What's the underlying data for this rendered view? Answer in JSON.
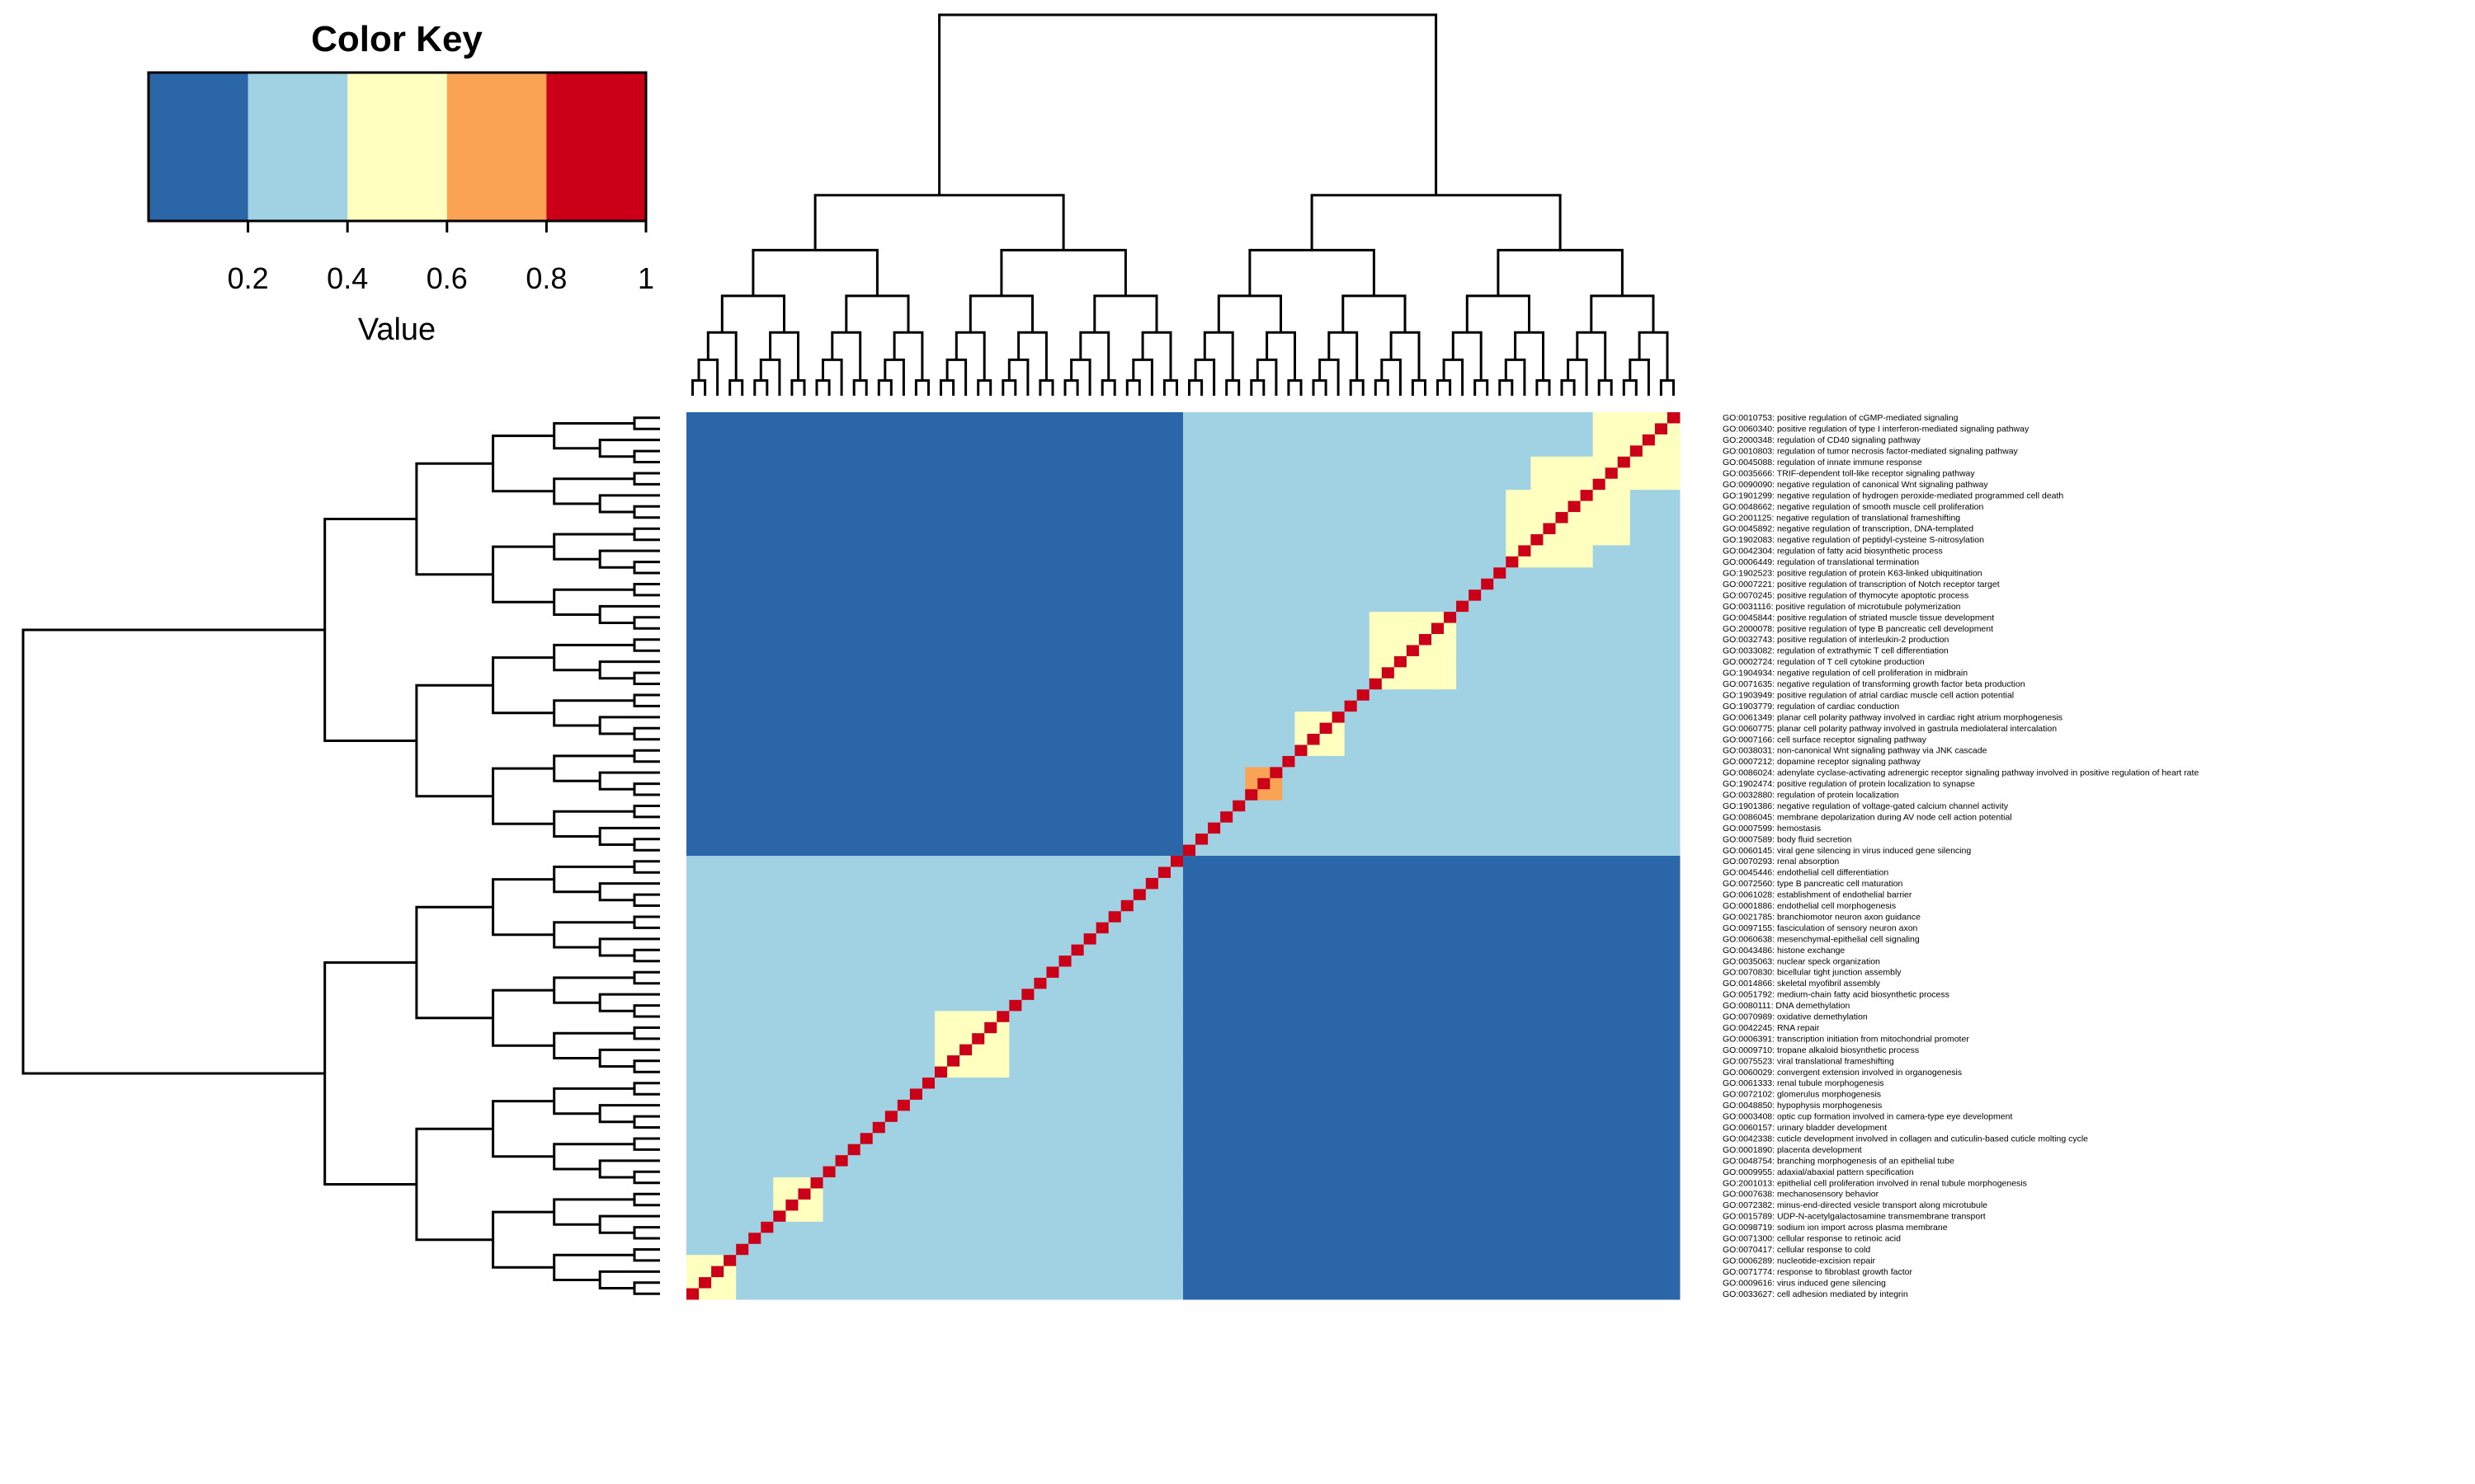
{
  "color_key": {
    "title": "Color Key",
    "label": "Value",
    "ticks": [
      "0.2",
      "0.4",
      "0.6",
      "0.8",
      "1"
    ],
    "bins": [
      {
        "from": 0.0,
        "to": 0.2,
        "color": "#2B67A8"
      },
      {
        "from": 0.2,
        "to": 0.4,
        "color": "#A1D2E4"
      },
      {
        "from": 0.4,
        "to": 0.6,
        "color": "#FFFFBF"
      },
      {
        "from": 0.6,
        "to": 0.8,
        "color": "#FBA355"
      },
      {
        "from": 0.8,
        "to": 1.0,
        "color": "#CB0018"
      }
    ]
  },
  "chart_data": {
    "type": "heatmap",
    "title": "",
    "xlabel": "",
    "ylabel": "",
    "value_range": [
      0,
      1
    ],
    "dendrogram_rows": true,
    "dendrogram_columns": true,
    "symmetric": true,
    "diagonal_value": 1,
    "row_labels": [
      "GO:0010753: positive regulation of cGMP-mediated signaling",
      "GO:0060340: positive regulation of type I interferon-mediated signaling pathway",
      "GO:2000348: regulation of CD40 signaling pathway",
      "GO:0010803: regulation of tumor necrosis factor-mediated signaling pathway",
      "GO:0045088: regulation of innate immune response",
      "GO:0035666: TRIF-dependent toll-like receptor signaling pathway",
      "GO:0090090: negative regulation of canonical Wnt signaling pathway",
      "GO:1901299: negative regulation of hydrogen peroxide-mediated programmed cell death",
      "GO:0048662: negative regulation of smooth muscle cell proliferation",
      "GO:2001125: negative regulation of translational frameshifting",
      "GO:0045892: negative regulation of transcription, DNA-templated",
      "GO:1902083: negative regulation of peptidyl-cysteine S-nitrosylation",
      "GO:0042304: regulation of fatty acid biosynthetic process",
      "GO:0006449: regulation of translational termination",
      "GO:1902523: positive regulation of protein K63-linked ubiquitination",
      "GO:0007221: positive regulation of transcription of Notch receptor target",
      "GO:0070245: positive regulation of thymocyte apoptotic process",
      "GO:0031116: positive regulation of microtubule polymerization",
      "GO:0045844: positive regulation of striated muscle tissue development",
      "GO:2000078: positive regulation of type B pancreatic cell development",
      "GO:0032743: positive regulation of interleukin-2 production",
      "GO:0033082: regulation of extrathymic T cell differentiation",
      "GO:0002724: regulation of T cell cytokine production",
      "GO:1904934: negative regulation of cell proliferation in midbrain",
      "GO:0071635: negative regulation of transforming growth factor beta production",
      "GO:1903949: positive regulation of atrial cardiac muscle cell action potential",
      "GO:1903779: regulation of cardiac conduction",
      "GO:0061349: planar cell polarity pathway involved in cardiac right atrium morphogenesis",
      "GO:0060775: planar cell polarity pathway involved in gastrula mediolateral intercalation",
      "GO:0007166: cell surface receptor signaling pathway",
      "GO:0038031: non-canonical Wnt signaling pathway via JNK cascade",
      "GO:0007212: dopamine receptor signaling pathway",
      "GO:0086024: adenylate cyclase-activating adrenergic receptor signaling pathway involved in positive regulation of heart rate",
      "GO:1902474: positive regulation of protein localization to synapse",
      "GO:0032880: regulation of protein localization",
      "GO:1901386: negative regulation of voltage-gated calcium channel activity",
      "GO:0086045: membrane depolarization during AV node cell action potential",
      "GO:0007599: hemostasis",
      "GO:0007589: body fluid secretion",
      "GO:0060145: viral gene silencing in virus induced gene silencing",
      "GO:0070293: renal absorption",
      "GO:0045446: endothelial cell differentiation",
      "GO:0072560: type B pancreatic cell maturation",
      "GO:0061028: establishment of endothelial barrier",
      "GO:0001886: endothelial cell morphogenesis",
      "GO:0021785: branchiomotor neuron axon guidance",
      "GO:0097155: fasciculation of sensory neuron axon",
      "GO:0060638: mesenchymal-epithelial cell signaling",
      "GO:0043486: histone exchange",
      "GO:0035063: nuclear speck organization",
      "GO:0070830: bicellular tight junction assembly",
      "GO:0014866: skeletal myofibril assembly",
      "GO:0051792: medium-chain fatty acid biosynthetic process",
      "GO:0080111: DNA demethylation",
      "GO:0070989: oxidative demethylation",
      "GO:0042245: RNA repair",
      "GO:0006391: transcription initiation from mitochondrial promoter",
      "GO:0009710: tropane alkaloid biosynthetic process",
      "GO:0075523: viral translational frameshifting",
      "GO:0060029: convergent extension involved in organogenesis",
      "GO:0061333: renal tubule morphogenesis",
      "GO:0072102: glomerulus morphogenesis",
      "GO:0048850: hypophysis morphogenesis",
      "GO:0003408: optic cup formation involved in camera-type eye development",
      "GO:0060157: urinary bladder development",
      "GO:0042338: cuticle development involved in collagen and cuticulin-based cuticle molting cycle",
      "GO:0001890: placenta development",
      "GO:0048754: branching morphogenesis of an epithelial tube",
      "GO:0009955: adaxial/abaxial pattern specification",
      "GO:2001013: epithelial cell proliferation involved in renal tubule morphogenesis",
      "GO:0007638: mechanosensory behavior",
      "GO:0072382: minus-end-directed vesicle transport along microtubule",
      "GO:0015789: UDP-N-acetylgalactosamine transmembrane transport",
      "GO:0098719: sodium ion import across plasma membrane",
      "GO:0071300: cellular response to retinoic acid",
      "GO:0070417: cellular response to cold",
      "GO:0006289: nucleotide-excision repair",
      "GO:0071774: response to fibroblast growth factor",
      "GO:0009616: virus induced gene silencing",
      "GO:0033627: cell adhesion mediated by integrin"
    ],
    "clusters": [
      {
        "from": 0,
        "to": 40,
        "within_value": 0.3
      },
      {
        "from": 40,
        "to": 80,
        "within_value": 0.3
      }
    ],
    "between_cluster_value": 0.1,
    "blocks": [
      {
        "from": 0,
        "to": 7,
        "value": 0.6
      },
      {
        "from": 4,
        "to": 12,
        "value": 0.5
      },
      {
        "from": 7,
        "to": 14,
        "value": 0.5
      },
      {
        "from": 18,
        "to": 25,
        "value": 0.5
      },
      {
        "from": 27,
        "to": 31,
        "value": 0.5
      },
      {
        "from": 32,
        "to": 35,
        "value": 0.7
      },
      {
        "from": 54,
        "to": 60,
        "value": 0.5
      },
      {
        "from": 69,
        "to": 73,
        "value": 0.5
      },
      {
        "from": 76,
        "to": 80,
        "value": 0.5
      }
    ]
  }
}
